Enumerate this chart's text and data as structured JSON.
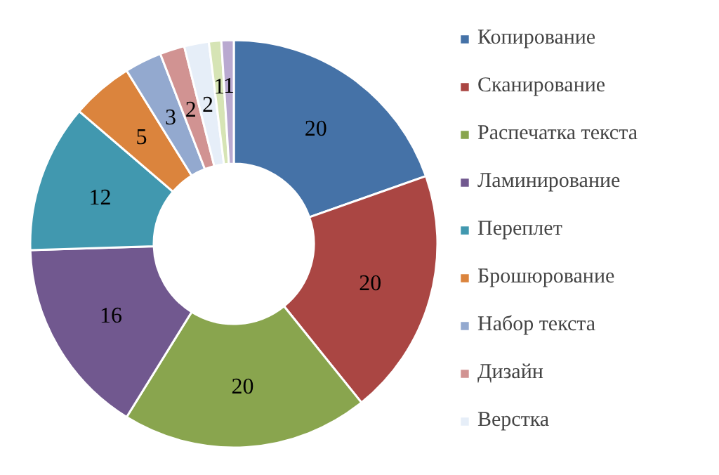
{
  "chart_data": {
    "type": "donut",
    "categories": [
      "Копирование",
      "Сканирование",
      "Распечатка текста",
      "Ламинирование",
      "Переплет",
      "Брошюрование",
      "Набор текста",
      "Дизайн",
      "Верстка",
      null,
      null
    ],
    "values": [
      20,
      20,
      20,
      16,
      12,
      5,
      3,
      2,
      2,
      1,
      1
    ],
    "colors": [
      "#4572a7",
      "#aa4643",
      "#89a54e",
      "#71588f",
      "#4198af",
      "#db843d",
      "#93a9cf",
      "#d19392",
      "#e6eef8",
      "#d6e4b5",
      "#b9a9d0"
    ],
    "data_labels": true,
    "legend": "right"
  }
}
